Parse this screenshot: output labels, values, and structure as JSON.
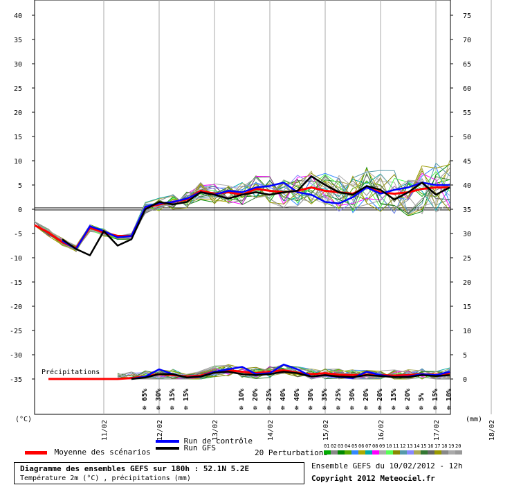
{
  "chart_data": {
    "type": "line",
    "title": "Diagramme des ensembles GEFS sur 180h : 52.1N 5.2E",
    "subtitle": "Température 2m (°C) , précipitations (mm)",
    "run_info": "Ensemble GEFS du 10/02/2012 - 12h",
    "copyright": "Copyright 2012 Meteociel.fr",
    "y_left_label": "(°C)",
    "y_right_label": "(mm)",
    "y_left_ticks": [
      "40",
      "35",
      "30",
      "25",
      "20",
      "15",
      "10",
      "5",
      "0",
      "-5",
      "-10",
      "-15",
      "-20",
      "-25",
      "-30",
      "-35"
    ],
    "y_right_ticks": [
      "75",
      "70",
      "65",
      "60",
      "55",
      "50",
      "45",
      "40",
      "35",
      "30",
      "25",
      "20",
      "15",
      "10",
      "5",
      "0"
    ],
    "ylim_left": [
      -35,
      43
    ],
    "ylim_right": [
      0,
      78
    ],
    "x_ticks": [
      "11/02",
      "12/02",
      "13/02",
      "14/02",
      "15/02",
      "16/02",
      "17/02",
      "18/02"
    ],
    "precip_label": "Précipitations",
    "snow_probabilities": [
      "65%",
      "30%",
      "15%",
      "15%",
      "10%",
      "20%",
      "25%",
      "40%",
      "40%",
      "30%",
      "35%",
      "25%",
      "30%",
      "20%",
      "20%",
      "15%",
      "20%",
      "5%",
      "15%",
      "10%"
    ],
    "x_hours": [
      0,
      6,
      12,
      18,
      24,
      30,
      36,
      42,
      48,
      54,
      60,
      66,
      72,
      78,
      84,
      90,
      96,
      102,
      108,
      114,
      120,
      126,
      132,
      138,
      144,
      150,
      156,
      162,
      168,
      174,
      180
    ],
    "series": [
      {
        "name": "Moyenne des scénarios",
        "color": "#ff0000",
        "kind": "mean",
        "temp": [
          -3.3,
          -4.8,
          -6.8,
          -8.0,
          -3.8,
          -4.8,
          -5.5,
          -5.5,
          0.3,
          1.0,
          1.5,
          2.0,
          3.8,
          3.2,
          3.5,
          3.0,
          4.2,
          3.8,
          3.5,
          3.8,
          4.5,
          3.8,
          3.5,
          3.2,
          4.5,
          3.5,
          3.2,
          3.5,
          4.2,
          4.5,
          4.5
        ],
        "precip": [
          null,
          0,
          0,
          0,
          0,
          0,
          0,
          0.2,
          0.5,
          1.0,
          0.8,
          0.5,
          0.7,
          1.5,
          1.8,
          1.5,
          1.2,
          1.5,
          1.8,
          1.3,
          1.0,
          1.2,
          0.9,
          0.8,
          0.9,
          0.8,
          0.7,
          0.8,
          1.0,
          0.9,
          1.2
        ]
      },
      {
        "name": "Run de contrôle",
        "color": "#0000ff",
        "kind": "control",
        "temp": [
          null,
          null,
          -6.5,
          -8.2,
          -3.5,
          -4.5,
          -5.8,
          -5.5,
          0.5,
          1.2,
          1.5,
          2.2,
          3.5,
          3.0,
          3.8,
          3.5,
          4.5,
          4.8,
          5.5,
          3.5,
          3.0,
          1.5,
          1.2,
          2.5,
          4.5,
          3.2,
          4.0,
          4.5,
          5.5,
          5.0,
          5.0
        ],
        "precip": [
          null,
          null,
          null,
          null,
          null,
          null,
          null,
          0,
          0.5,
          2.0,
          1.0,
          0.3,
          0.5,
          1.5,
          2.0,
          2.5,
          1.0,
          1.2,
          3.0,
          2.0,
          0.5,
          0.8,
          0.4,
          0.2,
          1.5,
          0.8,
          0.4,
          0.5,
          1.0,
          0.8,
          1.5
        ]
      },
      {
        "name": "Run GFS",
        "color": "#000000",
        "kind": "gfs",
        "temp": [
          null,
          null,
          -6.2,
          -8.2,
          -9.5,
          -4.5,
          -7.5,
          -6.2,
          0.0,
          1.5,
          1.0,
          1.5,
          3.5,
          3.0,
          2.2,
          3.0,
          3.5,
          3.0,
          3.5,
          3.8,
          6.8,
          5.0,
          3.5,
          3.0,
          4.8,
          4.0,
          2.0,
          3.5,
          5.5,
          3.0,
          4.5
        ],
        "precip": [
          null,
          null,
          null,
          null,
          null,
          null,
          null,
          0,
          0.3,
          1.0,
          1.0,
          0.3,
          0.5,
          1.3,
          1.5,
          1.0,
          0.8,
          1.0,
          1.5,
          1.2,
          0.5,
          0.8,
          0.5,
          0.4,
          0.8,
          0.6,
          0.4,
          0.4,
          0.8,
          0.6,
          0.8
        ]
      }
    ],
    "perturbations": {
      "label": "20 Perturbations",
      "numbers": [
        "01",
        "02",
        "03",
        "04",
        "05",
        "06",
        "07",
        "08",
        "09",
        "10",
        "11",
        "12",
        "13",
        "14",
        "15",
        "16",
        "17",
        "18",
        "19",
        "20"
      ],
      "colors": [
        "#00aa00",
        "#888888",
        "#008800",
        "#55aa00",
        "#3388ff",
        "#aaaa00",
        "#00aaaa",
        "#ff00ff",
        "#aaaaaa",
        "#55ff55",
        "#888800",
        "#5599aa",
        "#8888ff",
        "#aaaa55",
        "#337733",
        "#666666",
        "#999900",
        "#888888",
        "#aaaaaa",
        "#999999"
      ]
    },
    "legend": {
      "control": "Run de contrôle",
      "gfs": "Run GFS",
      "mean": "Moyenne des scénarios"
    }
  }
}
